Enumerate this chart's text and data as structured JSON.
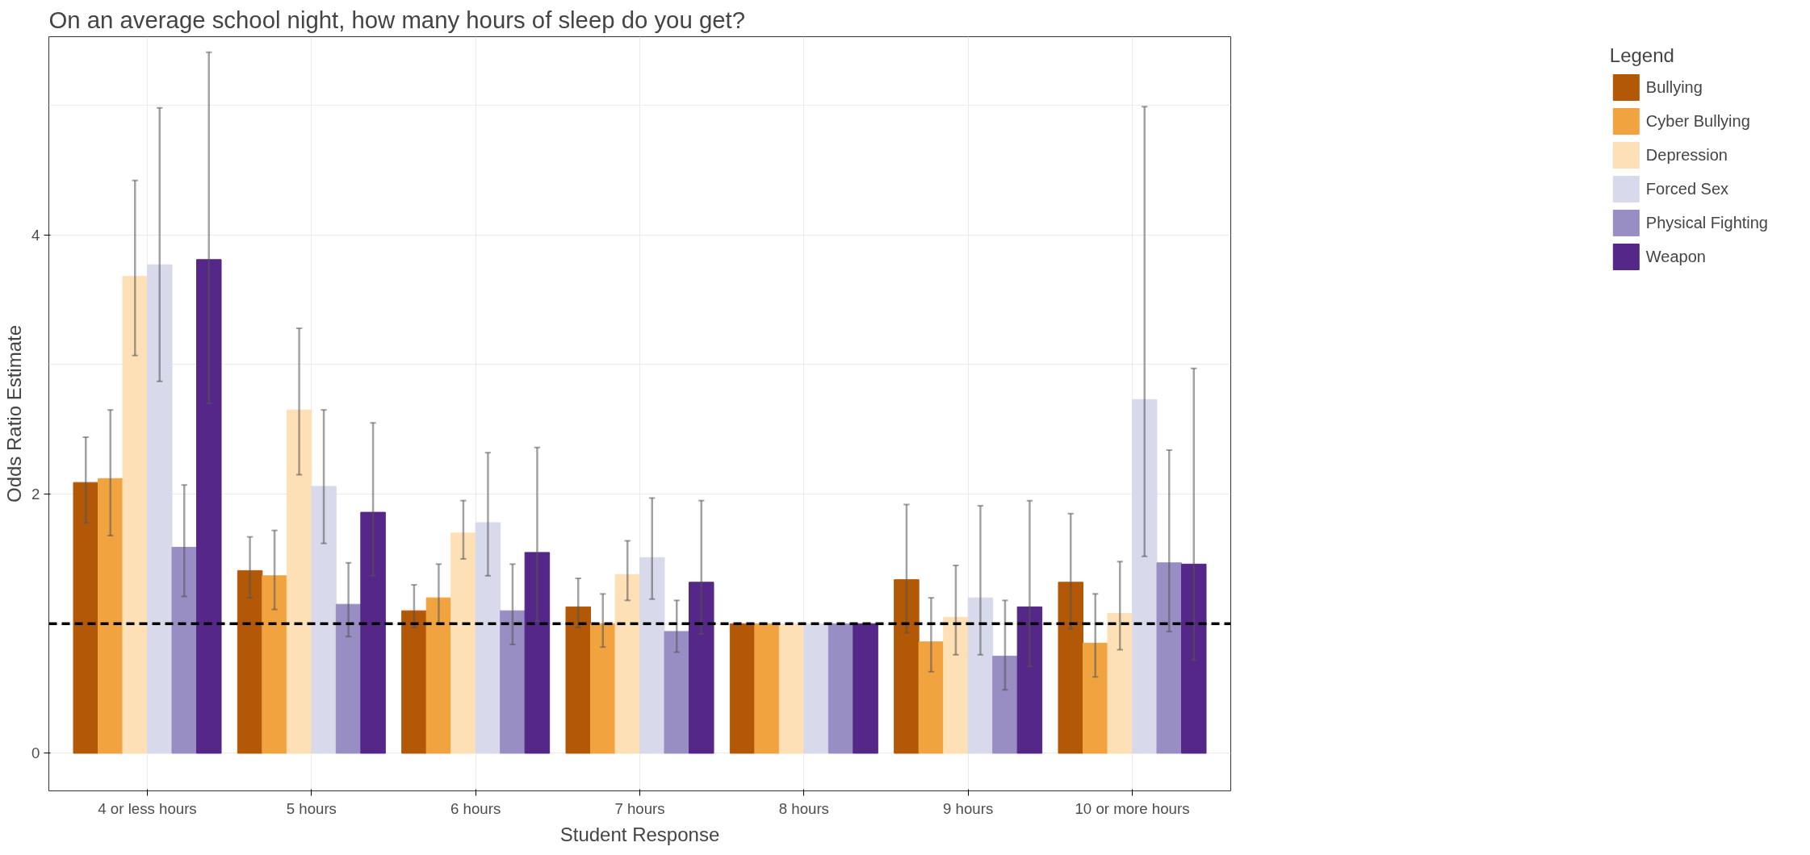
{
  "chart_data": {
    "type": "bar",
    "title": "On an average school night, how many hours of sleep do you get?",
    "xlabel": "Student Response",
    "ylabel": "Odds Ratio Estimate",
    "legend_title": "Legend",
    "categories": [
      "4 or less hours",
      "5 hours",
      "6 hours",
      "7 hours",
      "8 hours",
      "9 hours",
      "10 or more hours"
    ],
    "series": [
      {
        "name": "Bullying",
        "color": "#b35806",
        "values": [
          2.09,
          1.41,
          1.1,
          1.13,
          1.0,
          1.34,
          1.32
        ],
        "errors": [
          [
            1.78,
            2.44
          ],
          [
            1.2,
            1.67
          ],
          [
            0.97,
            1.3
          ],
          [
            0.97,
            1.35
          ],
          null,
          [
            0.93,
            1.92
          ],
          [
            0.96,
            1.85
          ]
        ]
      },
      {
        "name": "Cyber Bullying",
        "color": "#f1a340",
        "values": [
          2.12,
          1.37,
          1.2,
          1.0,
          1.0,
          0.86,
          0.85
        ],
        "errors": [
          [
            1.68,
            2.65
          ],
          [
            1.11,
            1.72
          ],
          [
            1.0,
            1.46
          ],
          [
            0.82,
            1.23
          ],
          null,
          [
            0.63,
            1.2
          ],
          [
            0.59,
            1.23
          ]
        ]
      },
      {
        "name": "Depression",
        "color": "#fee0b6",
        "values": [
          3.68,
          2.65,
          1.7,
          1.38,
          1.0,
          1.05,
          1.08
        ],
        "errors": [
          [
            3.07,
            4.42
          ],
          [
            2.15,
            3.28
          ],
          [
            1.5,
            1.95
          ],
          [
            1.18,
            1.64
          ],
          null,
          [
            0.76,
            1.45
          ],
          [
            0.8,
            1.48
          ]
        ]
      },
      {
        "name": "Forced Sex",
        "color": "#d8daeb",
        "values": [
          3.77,
          2.06,
          1.78,
          1.51,
          1.0,
          1.2,
          2.73
        ],
        "errors": [
          [
            2.87,
            4.98
          ],
          [
            1.62,
            2.65
          ],
          [
            1.37,
            2.32
          ],
          [
            1.19,
            1.97
          ],
          null,
          [
            0.76,
            1.91
          ],
          [
            1.52,
            4.99
          ]
        ]
      },
      {
        "name": "Physical Fighting",
        "color": "#998ec3",
        "values": [
          1.59,
          1.15,
          1.1,
          0.94,
          1.0,
          0.75,
          1.47
        ],
        "errors": [
          [
            1.21,
            2.07
          ],
          [
            0.9,
            1.47
          ],
          [
            0.84,
            1.46
          ],
          [
            0.78,
            1.18
          ],
          null,
          [
            0.49,
            1.18
          ],
          [
            0.94,
            2.34
          ]
        ]
      },
      {
        "name": "Weapon",
        "color": "#542788",
        "values": [
          3.81,
          1.86,
          1.55,
          1.32,
          1.0,
          1.13,
          1.46
        ],
        "errors": [
          [
            2.7,
            5.41
          ],
          [
            1.37,
            2.55
          ],
          [
            1.02,
            2.36
          ],
          [
            0.92,
            1.95
          ],
          null,
          [
            0.67,
            1.95
          ],
          [
            0.72,
            2.97
          ]
        ]
      }
    ],
    "ylim": [
      -0.29,
      5.53
    ],
    "yticks": [
      0,
      2,
      4
    ],
    "grid": true,
    "legend": "right",
    "ref_lines": [
      {
        "axis": "y",
        "value": 1,
        "color": "#000000",
        "line_style": "dashed"
      }
    ]
  }
}
